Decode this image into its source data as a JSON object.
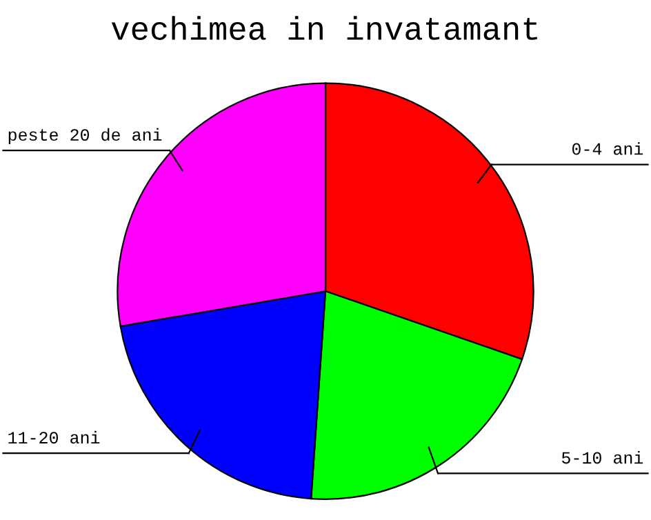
{
  "chart_data": {
    "type": "pie",
    "title": "vechimea in invatamant",
    "categories": [
      "0-4 ani",
      "5-10 ani",
      "11-20 ani",
      "peste 20 de ani"
    ],
    "values": [
      30.3,
      20.8,
      21.2,
      27.7
    ],
    "colors": [
      "#ff0000",
      "#00ff00",
      "#0000ff",
      "#ff00ff"
    ],
    "legend": false
  }
}
